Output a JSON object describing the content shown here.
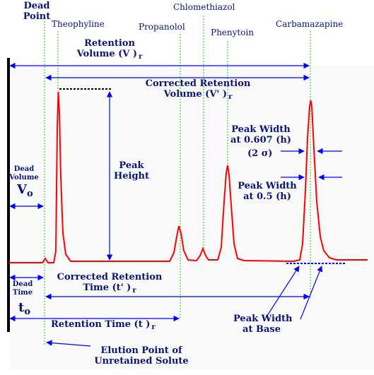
{
  "diagram": {
    "peaks": {
      "theophyline": "Theophyline",
      "propanolol": "Propanolol",
      "chlomethiazol": "Chlomethiazol",
      "phenytoin": "Phenytoin",
      "carbamazapine": "Carbamazapine"
    },
    "labels": {
      "dead_point_1": "Dead",
      "dead_point_2": "Point",
      "retention_volume_1": "Retention",
      "retention_volume_2": "Volume (V )",
      "retention_volume_sub": "r",
      "corrected_volume_1": "Corrected Retention",
      "corrected_volume_2": "Volume (V' )",
      "corrected_volume_sub": "r",
      "peak_height_1": "Peak",
      "peak_height_2": "Height",
      "dead_volume_1": "Dead",
      "dead_volume_2": "Volume",
      "v0_letter": "V",
      "v0_sub": "o",
      "peak_width_0607_1": "Peak Width",
      "peak_width_0607_2": "at 0.607 (h)",
      "two_sigma": "(2 σ)",
      "peak_width_05_1": "Peak Width",
      "peak_width_05_2": "at 0.5 (h)",
      "dead_time_1": "Dead",
      "dead_time_2": "Time",
      "t0_letter": "t",
      "t0_sub": "o",
      "corrected_time_1": "Corrected Retention",
      "corrected_time_2": "Time (t' )",
      "corrected_time_sub": "r",
      "retention_time": "Retention Time (t  )",
      "retention_time_sub": "r",
      "peak_width_base_1": "Peak Width",
      "peak_width_base_2": "at Base",
      "elution_point_1": "Elution Point of",
      "elution_point_2": "Unretained Solute"
    },
    "colors": {
      "trace": "#ff0000",
      "arrows": "#0000ff",
      "text": "#0a1478",
      "guides": "#33cc33",
      "axis": "#000000"
    }
  }
}
